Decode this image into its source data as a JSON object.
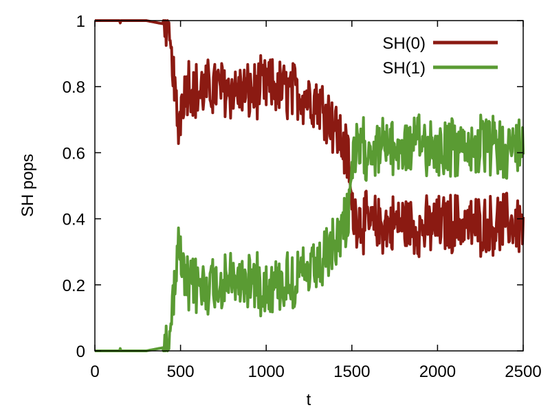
{
  "chart_data": {
    "type": "line",
    "xlabel": "t",
    "ylabel": "SH pops",
    "xlim": [
      0,
      2500
    ],
    "ylim": [
      0,
      1
    ],
    "x_ticks": [
      "0",
      "500",
      "1000",
      "1500",
      "2000",
      "2500"
    ],
    "y_ticks": [
      "0",
      "0.2",
      "0.4",
      "0.6",
      "0.8",
      "1"
    ],
    "grid": false,
    "legend_position": "top-right",
    "noise_note": "Values are approximate band-center traces; the plotted signal fluctuates strongly around these levels.",
    "x": [
      0,
      100,
      200,
      300,
      400,
      430,
      450,
      470,
      490,
      510,
      550,
      600,
      700,
      800,
      900,
      1000,
      1100,
      1200,
      1300,
      1350,
      1400,
      1450,
      1480,
      1500,
      1600,
      1700,
      1800,
      1900,
      2000,
      2100,
      2200,
      2300,
      2400,
      2500
    ],
    "series": [
      {
        "name": "SH(0)",
        "color": "#8b1a12",
        "values": [
          1.0,
          1.0,
          1.0,
          1.0,
          0.99,
          0.96,
          0.88,
          0.75,
          0.68,
          0.78,
          0.82,
          0.78,
          0.8,
          0.79,
          0.78,
          0.8,
          0.79,
          0.78,
          0.76,
          0.73,
          0.68,
          0.62,
          0.58,
          0.42,
          0.38,
          0.38,
          0.39,
          0.37,
          0.38,
          0.39,
          0.38,
          0.38,
          0.39,
          0.38
        ]
      },
      {
        "name": "SH(1)",
        "color": "#5a9b33",
        "values": [
          0.0,
          0.0,
          0.0,
          0.0,
          0.01,
          0.04,
          0.12,
          0.25,
          0.32,
          0.22,
          0.18,
          0.2,
          0.2,
          0.21,
          0.22,
          0.2,
          0.21,
          0.22,
          0.24,
          0.27,
          0.32,
          0.38,
          0.42,
          0.58,
          0.62,
          0.62,
          0.61,
          0.63,
          0.62,
          0.61,
          0.62,
          0.62,
          0.61,
          0.62
        ]
      }
    ]
  }
}
